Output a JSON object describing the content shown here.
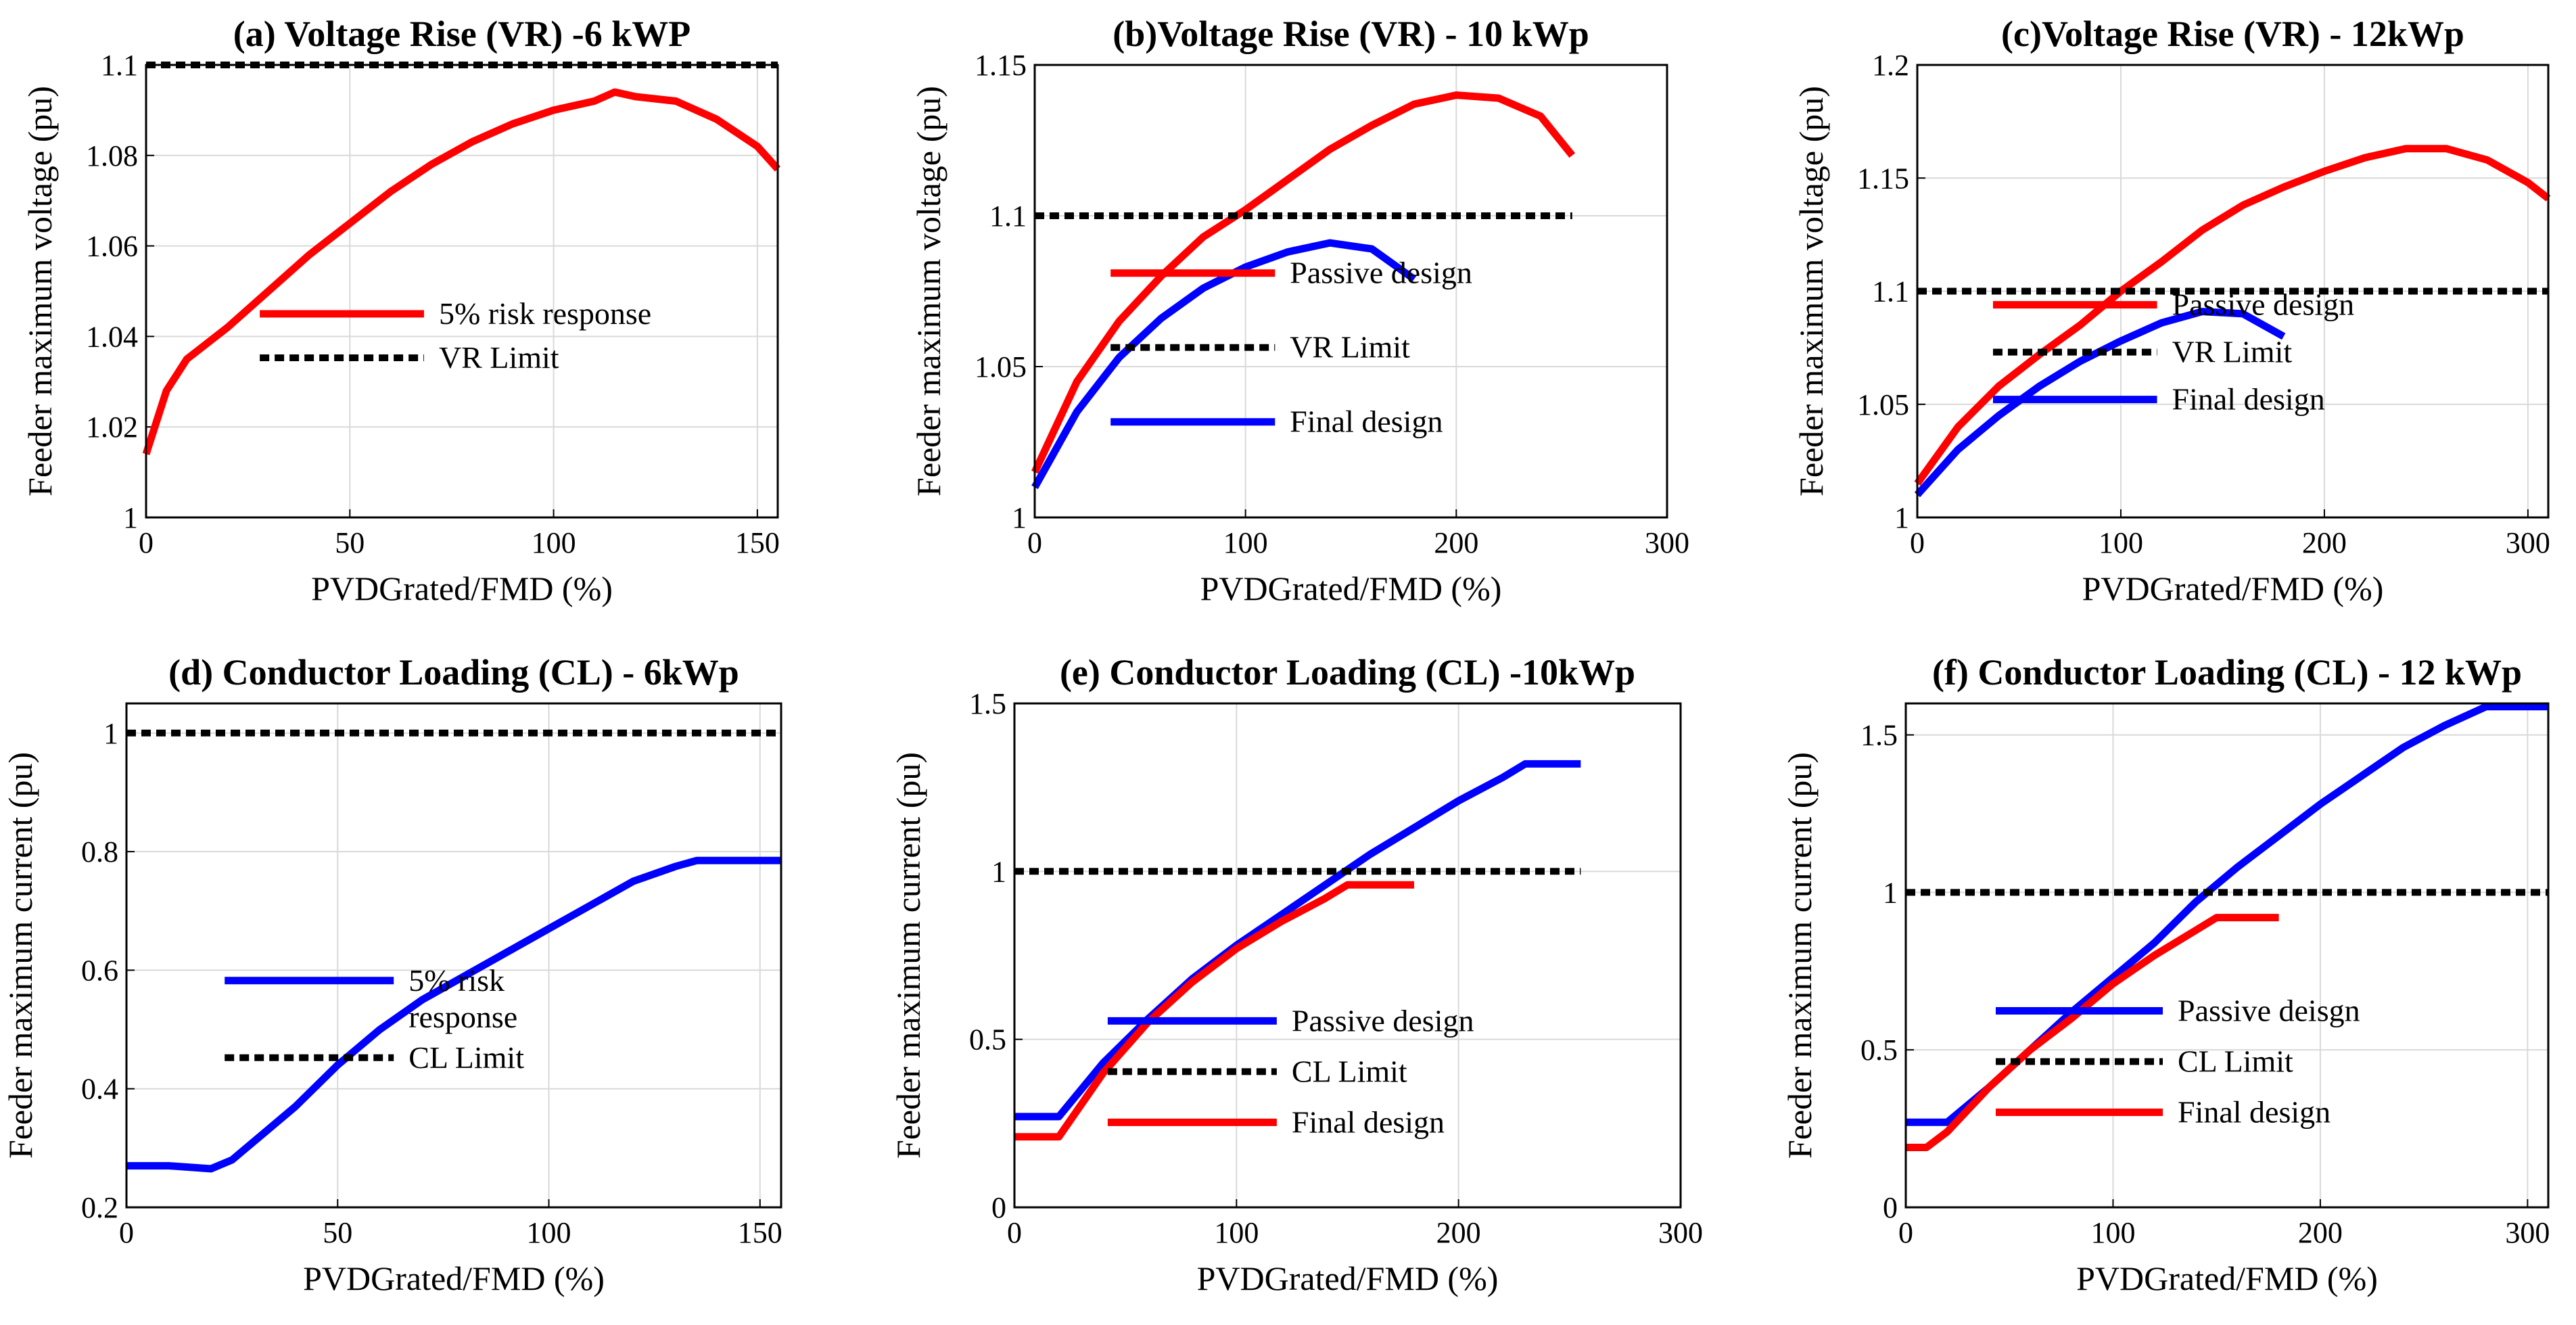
{
  "chart_data": [
    {
      "id": "a",
      "type": "line",
      "title": "(a) Voltage Rise (VR) -6 kWP",
      "xlabel": "PVDGrated/FMD (%)",
      "ylabel": "Feeder maximum voltage (pu)",
      "xlim": [
        0,
        155
      ],
      "ylim": [
        1,
        1.1
      ],
      "xticks": [
        0,
        50,
        100,
        150
      ],
      "xtick_labels": [
        "0",
        "50",
        "100",
        "150"
      ],
      "yticks": [
        1,
        1.02,
        1.04,
        1.06,
        1.08,
        1.1
      ],
      "ytick_labels": [
        "1",
        "1.02",
        "1.04",
        "1.06",
        "1.08",
        "1.1"
      ],
      "series": [
        {
          "name": "5% risk response",
          "legend_lines": [
            "5% risk response"
          ],
          "color": "#ff0000",
          "style": "solid",
          "x": [
            0,
            5,
            10,
            20,
            30,
            40,
            50,
            60,
            70,
            80,
            90,
            100,
            110,
            115,
            120,
            130,
            140,
            150,
            155
          ],
          "y": [
            1.014,
            1.028,
            1.035,
            1.042,
            1.05,
            1.058,
            1.065,
            1.072,
            1.078,
            1.083,
            1.087,
            1.09,
            1.092,
            1.094,
            1.093,
            1.092,
            1.088,
            1.082,
            1.077
          ]
        },
        {
          "name": "VR Limit",
          "legend_lines": [
            "VR Limit"
          ],
          "color": "#000000",
          "style": "dashed",
          "x": [
            0,
            155
          ],
          "y": [
            1.1,
            1.1
          ]
        }
      ]
    },
    {
      "id": "b",
      "type": "line",
      "title": "(b)Voltage Rise (VR) - 10 kWp",
      "xlabel": "PVDGrated/FMD (%)",
      "ylabel": "Feeder maximum voltage (pu)",
      "xlim": [
        0,
        300
      ],
      "ylim": [
        1,
        1.15
      ],
      "xticks": [
        0,
        100,
        200,
        300
      ],
      "xtick_labels": [
        "0",
        "100",
        "200",
        "300"
      ],
      "yticks": [
        1,
        1.05,
        1.1,
        1.15
      ],
      "ytick_labels": [
        "1",
        "1.05",
        "1.1",
        "1.15"
      ],
      "series": [
        {
          "name": "Passive design",
          "legend_lines": [
            "Passive design"
          ],
          "color": "#ff0000",
          "style": "solid",
          "x": [
            0,
            20,
            40,
            60,
            80,
            100,
            120,
            140,
            160,
            180,
            200,
            220,
            240,
            255
          ],
          "y": [
            1.015,
            1.045,
            1.065,
            1.08,
            1.093,
            1.102,
            1.112,
            1.122,
            1.13,
            1.137,
            1.14,
            1.139,
            1.133,
            1.12
          ]
        },
        {
          "name": "VR Limit",
          "legend_lines": [
            "VR Limit"
          ],
          "color": "#000000",
          "style": "dashed",
          "x": [
            0,
            255
          ],
          "y": [
            1.1,
            1.1
          ]
        },
        {
          "name": "Final design",
          "legend_lines": [
            "Final design"
          ],
          "color": "#0000ff",
          "style": "solid",
          "x": [
            0,
            20,
            40,
            60,
            80,
            100,
            120,
            140,
            160,
            180
          ],
          "y": [
            1.01,
            1.035,
            1.053,
            1.066,
            1.076,
            1.083,
            1.088,
            1.091,
            1.089,
            1.079
          ]
        }
      ]
    },
    {
      "id": "c",
      "type": "line",
      "title": "(c)Voltage Rise (VR) - 12kWp",
      "xlabel": "PVDGrated/FMD (%)",
      "ylabel": "Feeder maximum voltage (pu)",
      "xlim": [
        0,
        310
      ],
      "ylim": [
        1,
        1.2
      ],
      "xticks": [
        0,
        100,
        200,
        300
      ],
      "xtick_labels": [
        "0",
        "100",
        "200",
        "300"
      ],
      "yticks": [
        1,
        1.05,
        1.1,
        1.15,
        1.2
      ],
      "ytick_labels": [
        "1",
        "1.05",
        "1.1",
        "1.15",
        "1.2"
      ],
      "series": [
        {
          "name": "Passive design",
          "legend_lines": [
            "Passive design"
          ],
          "color": "#ff0000",
          "style": "solid",
          "x": [
            0,
            20,
            40,
            60,
            80,
            100,
            120,
            140,
            160,
            180,
            200,
            220,
            240,
            260,
            280,
            300,
            310
          ],
          "y": [
            1.015,
            1.04,
            1.058,
            1.072,
            1.085,
            1.1,
            1.113,
            1.127,
            1.138,
            1.146,
            1.153,
            1.159,
            1.163,
            1.163,
            1.158,
            1.148,
            1.141
          ]
        },
        {
          "name": "VR Limit",
          "legend_lines": [
            "VR Limit"
          ],
          "color": "#000000",
          "style": "dashed",
          "x": [
            0,
            310
          ],
          "y": [
            1.1,
            1.1
          ]
        },
        {
          "name": "Final design",
          "legend_lines": [
            "Final design"
          ],
          "color": "#0000ff",
          "style": "solid",
          "x": [
            0,
            20,
            40,
            60,
            80,
            100,
            120,
            140,
            160,
            180
          ],
          "y": [
            1.01,
            1.03,
            1.045,
            1.058,
            1.069,
            1.078,
            1.086,
            1.091,
            1.09,
            1.08
          ]
        }
      ]
    },
    {
      "id": "d",
      "type": "line",
      "title": "(d) Conductor Loading (CL) - 6kWp",
      "xlabel": "PVDGrated/FMD (%)",
      "ylabel": "Feeder maximum current (pu)",
      "xlim": [
        0,
        155
      ],
      "ylim": [
        0.2,
        1.05
      ],
      "xticks": [
        0,
        50,
        100,
        150
      ],
      "xtick_labels": [
        "0",
        "50",
        "100",
        "150"
      ],
      "yticks": [
        0.2,
        0.4,
        0.6,
        0.8,
        1
      ],
      "ytick_labels": [
        "0.2",
        "0.4",
        "0.6",
        "0.8",
        "1"
      ],
      "series": [
        {
          "name": "5% risk response",
          "legend_lines": [
            "5% risk",
            "response"
          ],
          "color": "#0000ff",
          "style": "solid",
          "x": [
            0,
            10,
            20,
            25,
            30,
            40,
            50,
            60,
            70,
            80,
            90,
            100,
            110,
            120,
            130,
            135,
            155
          ],
          "y": [
            0.27,
            0.27,
            0.265,
            0.28,
            0.31,
            0.37,
            0.44,
            0.5,
            0.55,
            0.59,
            0.63,
            0.67,
            0.71,
            0.75,
            0.775,
            0.785,
            0.785
          ]
        },
        {
          "name": "CL Limit",
          "legend_lines": [
            "CL Limit"
          ],
          "color": "#000000",
          "style": "dashed",
          "x": [
            0,
            155
          ],
          "y": [
            1,
            1
          ]
        }
      ]
    },
    {
      "id": "e",
      "type": "line",
      "title": "(e) Conductor Loading (CL) -10kWp",
      "xlabel": "PVDGrated/FMD (%)",
      "ylabel": "Feeder maximum current (pu)",
      "xlim": [
        0,
        300
      ],
      "ylim": [
        0,
        1.5
      ],
      "xticks": [
        0,
        100,
        200,
        300
      ],
      "xtick_labels": [
        "0",
        "100",
        "200",
        "300"
      ],
      "yticks": [
        0,
        0.5,
        1,
        1.5
      ],
      "ytick_labels": [
        "0",
        "0.5",
        "1",
        "1.5"
      ],
      "series": [
        {
          "name": "Passive design",
          "legend_lines": [
            "Passive design"
          ],
          "color": "#0000ff",
          "style": "solid",
          "x": [
            0,
            20,
            40,
            60,
            80,
            100,
            120,
            140,
            160,
            180,
            200,
            220,
            230,
            255
          ],
          "y": [
            0.27,
            0.27,
            0.43,
            0.56,
            0.68,
            0.78,
            0.87,
            0.96,
            1.05,
            1.13,
            1.21,
            1.28,
            1.32,
            1.32
          ]
        },
        {
          "name": "CL Limit",
          "legend_lines": [
            "CL Limit"
          ],
          "color": "#000000",
          "style": "dashed",
          "x": [
            0,
            255
          ],
          "y": [
            1,
            1
          ]
        },
        {
          "name": "Final design",
          "legend_lines": [
            "Final design"
          ],
          "color": "#ff0000",
          "style": "solid",
          "x": [
            0,
            20,
            40,
            60,
            80,
            100,
            120,
            140,
            150,
            180
          ],
          "y": [
            0.21,
            0.21,
            0.4,
            0.55,
            0.67,
            0.77,
            0.85,
            0.92,
            0.96,
            0.96
          ]
        }
      ]
    },
    {
      "id": "f",
      "type": "line",
      "title": "(f) Conductor Loading (CL) - 12 kWp",
      "xlabel": "PVDGrated/FMD (%)",
      "ylabel": "Feeder maximum current (pu)",
      "xlim": [
        0,
        310
      ],
      "ylim": [
        0,
        1.6
      ],
      "xticks": [
        0,
        100,
        200,
        300
      ],
      "xtick_labels": [
        "0",
        "100",
        "200",
        "300"
      ],
      "yticks": [
        0,
        0.5,
        1,
        1.5
      ],
      "ytick_labels": [
        "0",
        "0.5",
        "1",
        "1.5"
      ],
      "series": [
        {
          "name": "Passive deisgn",
          "legend_lines": [
            "Passive deisgn"
          ],
          "color": "#0000ff",
          "style": "solid",
          "x": [
            0,
            20,
            40,
            60,
            80,
            100,
            120,
            140,
            160,
            180,
            200,
            220,
            240,
            260,
            280,
            310
          ],
          "y": [
            0.27,
            0.27,
            0.38,
            0.5,
            0.62,
            0.73,
            0.84,
            0.97,
            1.08,
            1.18,
            1.28,
            1.37,
            1.46,
            1.53,
            1.59,
            1.59
          ]
        },
        {
          "name": "CL Limit",
          "legend_lines": [
            "CL Limit"
          ],
          "color": "#000000",
          "style": "dashed",
          "x": [
            0,
            310
          ],
          "y": [
            1,
            1
          ]
        },
        {
          "name": "Final design",
          "legend_lines": [
            "Final design"
          ],
          "color": "#ff0000",
          "style": "solid",
          "x": [
            0,
            10,
            20,
            40,
            60,
            80,
            100,
            120,
            140,
            150,
            180
          ],
          "y": [
            0.19,
            0.19,
            0.24,
            0.38,
            0.5,
            0.6,
            0.71,
            0.8,
            0.88,
            0.92,
            0.92
          ]
        }
      ]
    }
  ]
}
